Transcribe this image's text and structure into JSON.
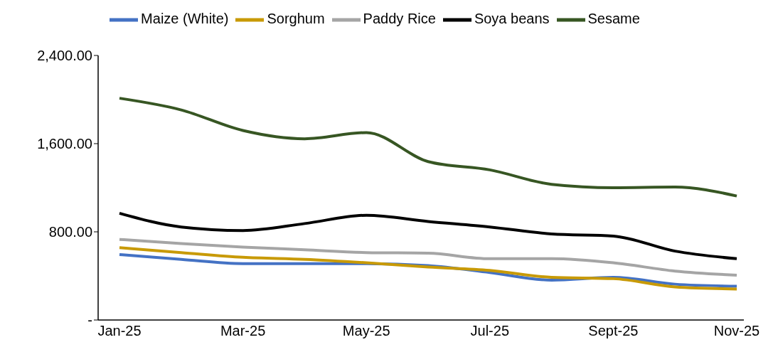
{
  "chart_data": {
    "type": "line",
    "categories": [
      "Jan-25",
      null,
      "Mar-25",
      null,
      "May-25",
      null,
      "Jul-25",
      null,
      "Sept-25",
      null,
      "Nov-25"
    ],
    "series": [
      {
        "name": "Maize (White)",
        "color": "#4472c4",
        "values": [
          594,
          550,
          512,
          512,
          512,
          494,
          431,
          362,
          387,
          325,
          306
        ]
      },
      {
        "name": "Sorghum",
        "color": "#c89a06",
        "values": [
          656,
          612,
          569,
          550,
          519,
          481,
          450,
          387,
          375,
          300,
          281
        ]
      },
      {
        "name": "Paddy Rice",
        "color": "#a5a5a5",
        "values": [
          731,
          694,
          662,
          637,
          612,
          606,
          556,
          556,
          519,
          444,
          406
        ]
      },
      {
        "name": "Soya beans",
        "color": "#000000",
        "values": [
          969,
          844,
          812,
          875,
          950,
          894,
          844,
          781,
          762,
          625,
          556
        ]
      },
      {
        "name": "Sesame",
        "color": "#375623",
        "values": [
          2012,
          1906,
          1719,
          1644,
          1700,
          1437,
          1362,
          1231,
          1200,
          1206,
          1125
        ]
      }
    ],
    "ylim": [
      0,
      2400
    ],
    "yticks": [
      {
        "value": 0,
        "label": "-"
      },
      {
        "value": 800,
        "label": "800.00"
      },
      {
        "value": 1600,
        "label": "1,600.00"
      },
      {
        "value": 2400,
        "label": "2,400.00"
      }
    ],
    "grid": false,
    "legend": "top",
    "marker": "none",
    "line_style": "solid"
  }
}
